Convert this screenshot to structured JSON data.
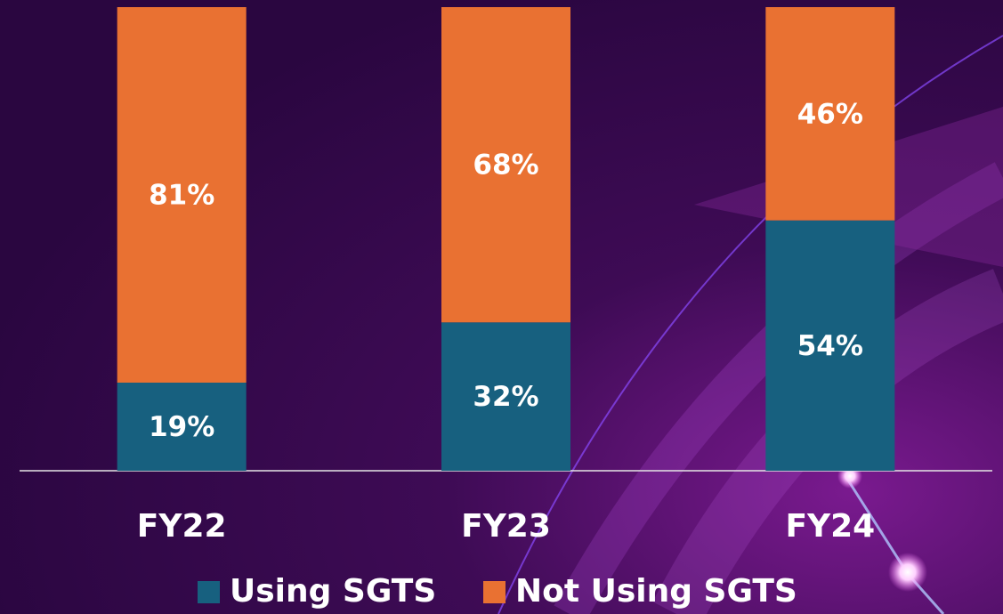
{
  "chart_data": {
    "type": "stacked_bar",
    "categories": [
      "FY22",
      "FY23",
      "FY24"
    ],
    "series": [
      {
        "name": "Using SGTS",
        "color": "#17607f",
        "values": [
          19,
          32,
          54
        ],
        "value_labels": [
          "19%",
          "32%",
          "54%"
        ]
      },
      {
        "name": "Not Using SGTS",
        "color": "#e97132",
        "values": [
          81,
          68,
          46
        ],
        "value_labels": [
          "81%",
          "68%",
          "46%"
        ]
      }
    ],
    "ylim": [
      0,
      100
    ]
  }
}
